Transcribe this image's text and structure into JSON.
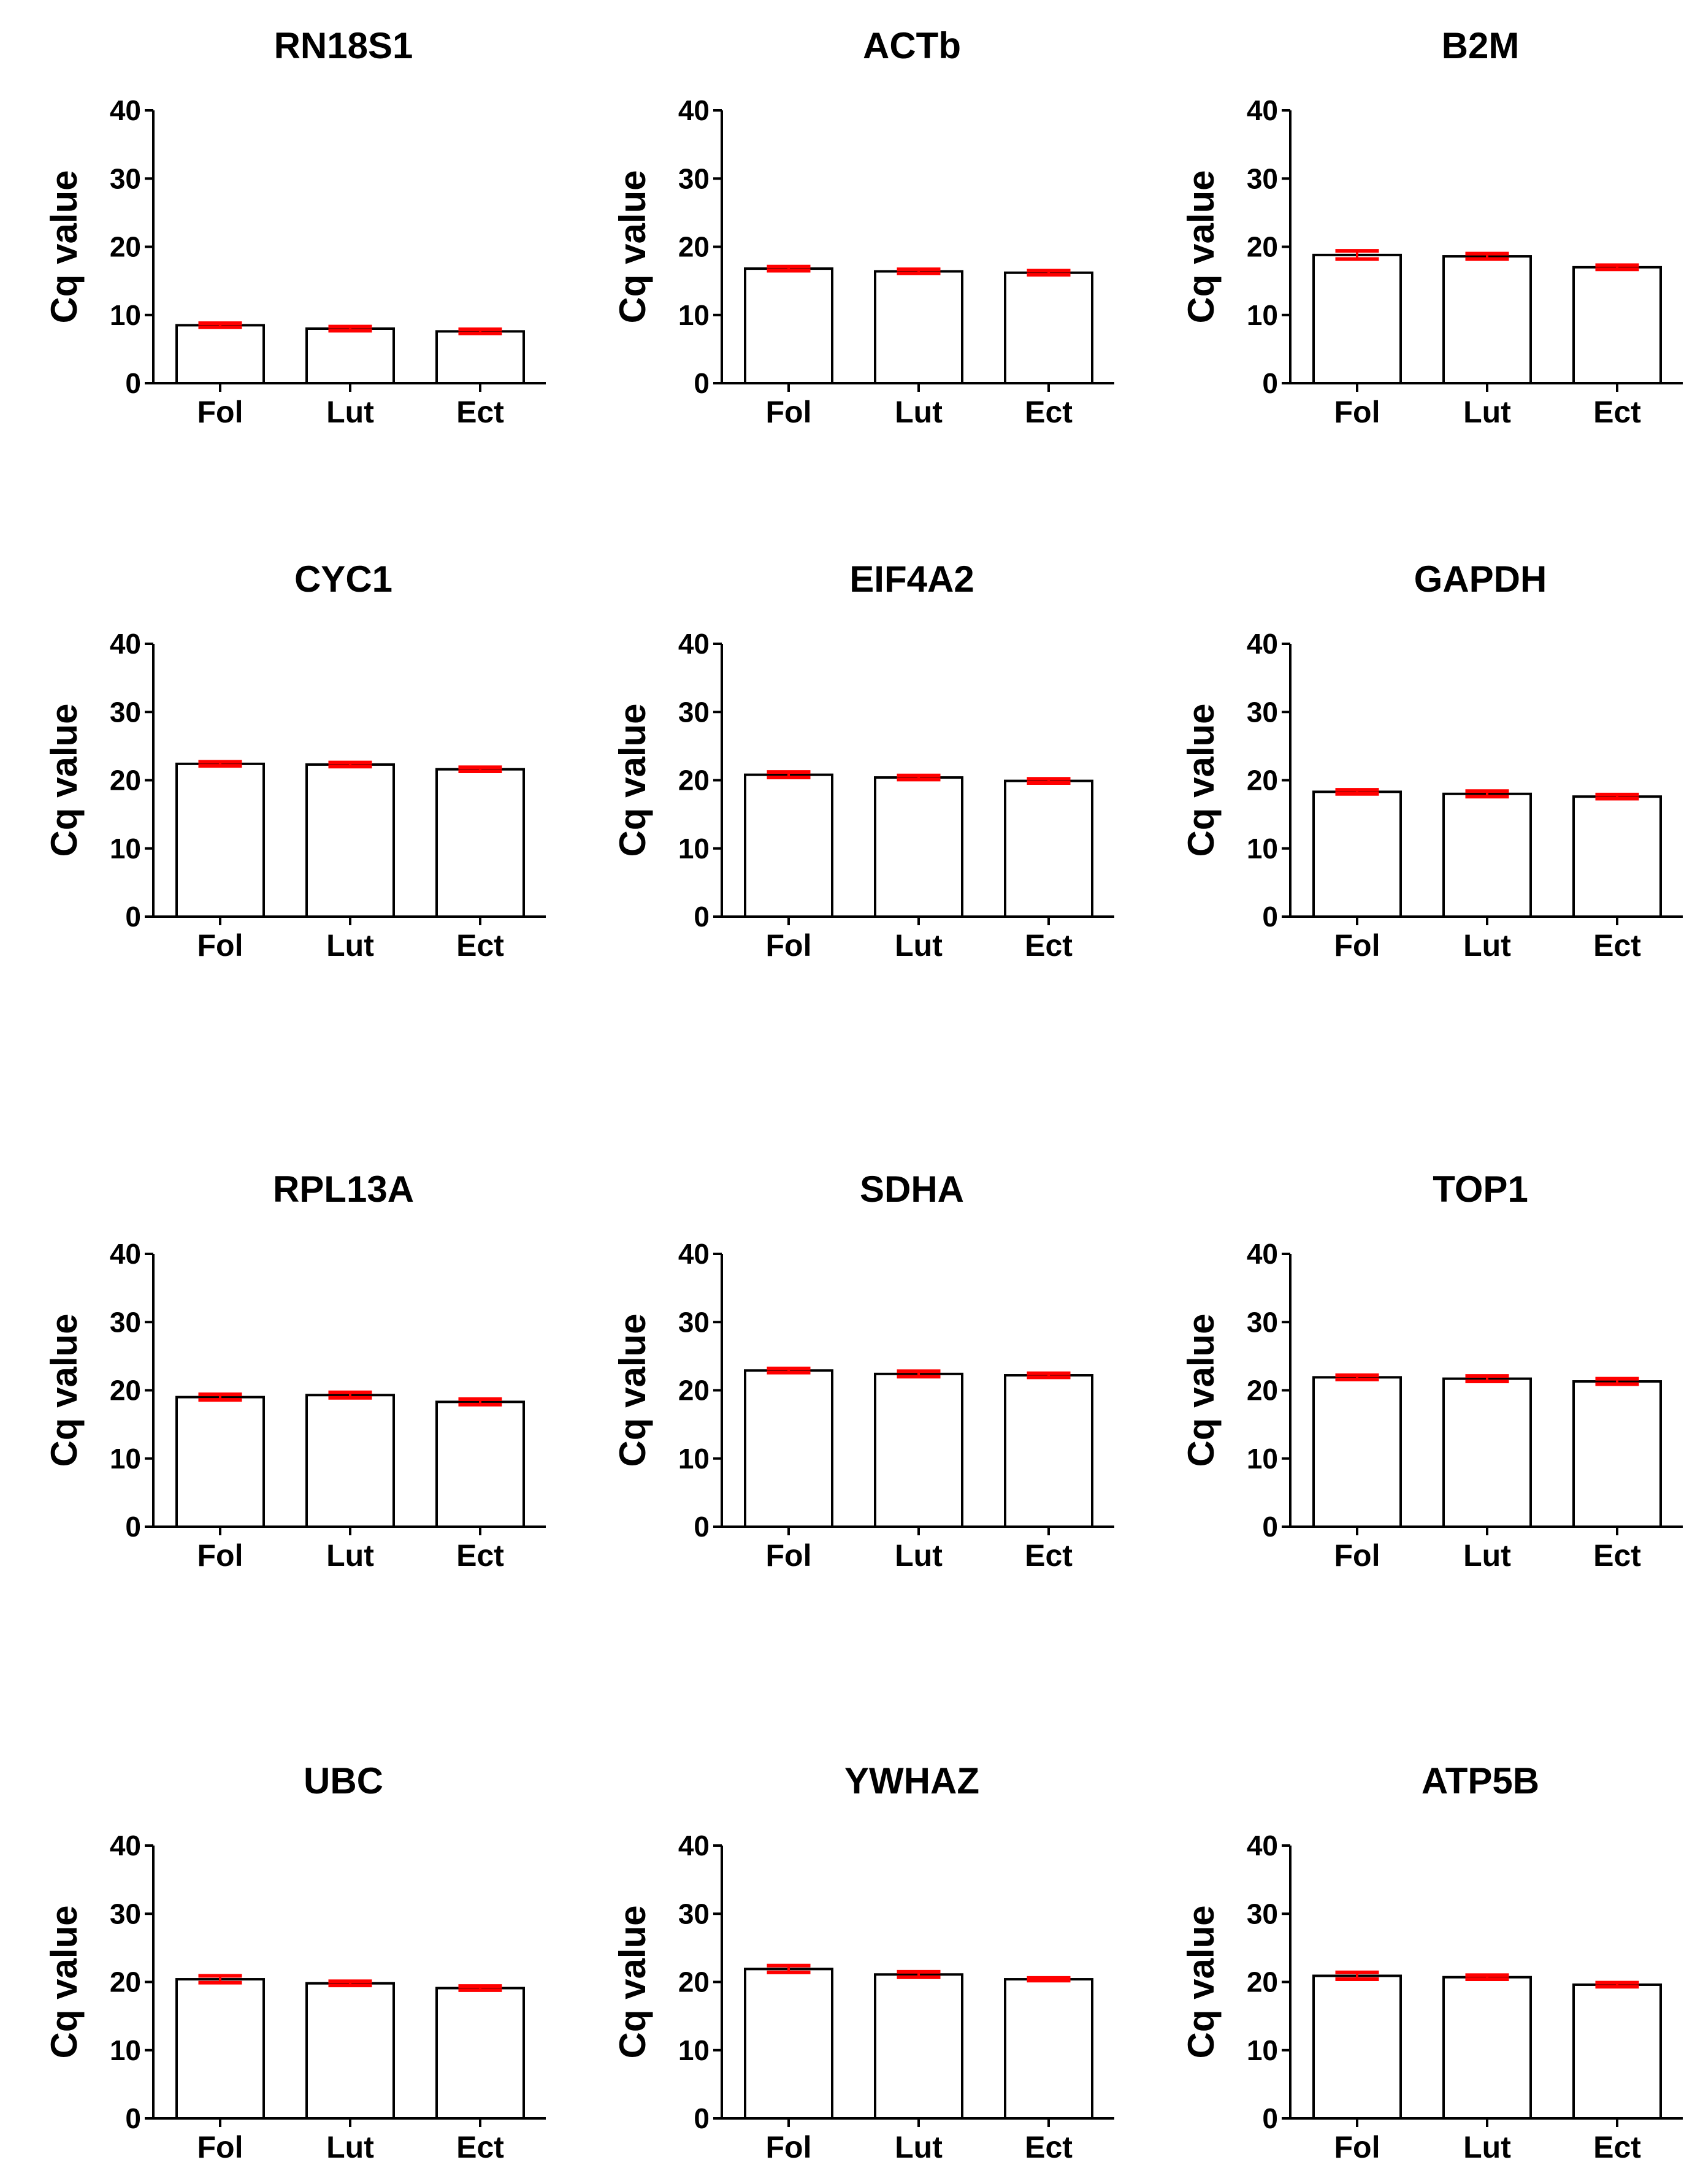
{
  "figure": {
    "colors": {
      "bar_fill": "#ffffff",
      "bar_stroke": "#000000",
      "axis": "#000000",
      "error_bar": "#ff0000"
    }
  },
  "chart_data": [
    {
      "type": "bar",
      "title": "RN18S1",
      "ylabel": "Cq value",
      "xlabel": "",
      "ylim": [
        0,
        40
      ],
      "yticks": [
        "0",
        "10",
        "20",
        "30",
        "40"
      ],
      "categories": [
        "Fol",
        "Lut",
        "Ect"
      ],
      "values": [
        8.5,
        8.0,
        7.6
      ],
      "errors": [
        0.3,
        0.3,
        0.3
      ]
    },
    {
      "type": "bar",
      "title": "ACTb",
      "ylabel": "Cq value",
      "xlabel": "",
      "ylim": [
        0,
        40
      ],
      "yticks": [
        "0",
        "10",
        "20",
        "30",
        "40"
      ],
      "categories": [
        "Fol",
        "Lut",
        "Ect"
      ],
      "values": [
        16.8,
        16.4,
        16.2
      ],
      "errors": [
        0.3,
        0.3,
        0.3
      ]
    },
    {
      "type": "bar",
      "title": "B2M",
      "ylabel": "Cq value",
      "xlabel": "",
      "ylim": [
        0,
        40
      ],
      "yticks": [
        "0",
        "10",
        "20",
        "30",
        "40"
      ],
      "categories": [
        "Fol",
        "Lut",
        "Ect"
      ],
      "values": [
        18.8,
        18.6,
        17.0
      ],
      "errors": [
        0.6,
        0.4,
        0.3
      ]
    },
    {
      "type": "bar",
      "title": "CYC1",
      "ylabel": "Cq value",
      "xlabel": "",
      "ylim": [
        0,
        40
      ],
      "yticks": [
        "0",
        "10",
        "20",
        "30",
        "40"
      ],
      "categories": [
        "Fol",
        "Lut",
        "Ect"
      ],
      "values": [
        22.4,
        22.3,
        21.6
      ],
      "errors": [
        0.3,
        0.3,
        0.3
      ]
    },
    {
      "type": "bar",
      "title": "EIF4A2",
      "ylabel": "Cq value",
      "xlabel": "",
      "ylim": [
        0,
        40
      ],
      "yticks": [
        "0",
        "10",
        "20",
        "30",
        "40"
      ],
      "categories": [
        "Fol",
        "Lut",
        "Ect"
      ],
      "values": [
        20.8,
        20.4,
        19.9
      ],
      "errors": [
        0.4,
        0.3,
        0.3
      ]
    },
    {
      "type": "bar",
      "title": "GAPDH",
      "ylabel": "Cq value",
      "xlabel": "",
      "ylim": [
        0,
        40
      ],
      "yticks": [
        "0",
        "10",
        "20",
        "30",
        "40"
      ],
      "categories": [
        "Fol",
        "Lut",
        "Ect"
      ],
      "values": [
        18.3,
        18.0,
        17.6
      ],
      "errors": [
        0.3,
        0.4,
        0.3
      ]
    },
    {
      "type": "bar",
      "title": "RPL13A",
      "ylabel": "Cq value",
      "xlabel": "",
      "ylim": [
        0,
        40
      ],
      "yticks": [
        "0",
        "10",
        "20",
        "30",
        "40"
      ],
      "categories": [
        "Fol",
        "Lut",
        "Ect"
      ],
      "values": [
        19.0,
        19.3,
        18.3
      ],
      "errors": [
        0.4,
        0.4,
        0.4
      ]
    },
    {
      "type": "bar",
      "title": "SDHA",
      "ylabel": "Cq value",
      "xlabel": "",
      "ylim": [
        0,
        40
      ],
      "yticks": [
        "0",
        "10",
        "20",
        "30",
        "40"
      ],
      "categories": [
        "Fol",
        "Lut",
        "Ect"
      ],
      "values": [
        22.9,
        22.4,
        22.2
      ],
      "errors": [
        0.3,
        0.4,
        0.3
      ]
    },
    {
      "type": "bar",
      "title": "TOP1",
      "ylabel": "Cq value",
      "xlabel": "",
      "ylim": [
        0,
        40
      ],
      "yticks": [
        "0",
        "10",
        "20",
        "30",
        "40"
      ],
      "categories": [
        "Fol",
        "Lut",
        "Ect"
      ],
      "values": [
        21.9,
        21.7,
        21.3
      ],
      "errors": [
        0.3,
        0.4,
        0.4
      ]
    },
    {
      "type": "bar",
      "title": "UBC",
      "ylabel": "Cq value",
      "xlabel": "",
      "ylim": [
        0,
        40
      ],
      "yticks": [
        "0",
        "10",
        "20",
        "30",
        "40"
      ],
      "categories": [
        "Fol",
        "Lut",
        "Ect"
      ],
      "values": [
        20.4,
        19.8,
        19.1
      ],
      "errors": [
        0.5,
        0.3,
        0.3
      ]
    },
    {
      "type": "bar",
      "title": "YWHAZ",
      "ylabel": "Cq value",
      "xlabel": "",
      "ylim": [
        0,
        40
      ],
      "yticks": [
        "0",
        "10",
        "20",
        "30",
        "40"
      ],
      "categories": [
        "Fol",
        "Lut",
        "Ect"
      ],
      "values": [
        21.9,
        21.1,
        20.4
      ],
      "errors": [
        0.5,
        0.4,
        0.2
      ]
    },
    {
      "type": "bar",
      "title": "ATP5B",
      "ylabel": "Cq value",
      "xlabel": "",
      "ylim": [
        0,
        40
      ],
      "yticks": [
        "0",
        "10",
        "20",
        "30",
        "40"
      ],
      "categories": [
        "Fol",
        "Lut",
        "Ect"
      ],
      "values": [
        20.9,
        20.7,
        19.6
      ],
      "errors": [
        0.5,
        0.3,
        0.3
      ]
    }
  ]
}
